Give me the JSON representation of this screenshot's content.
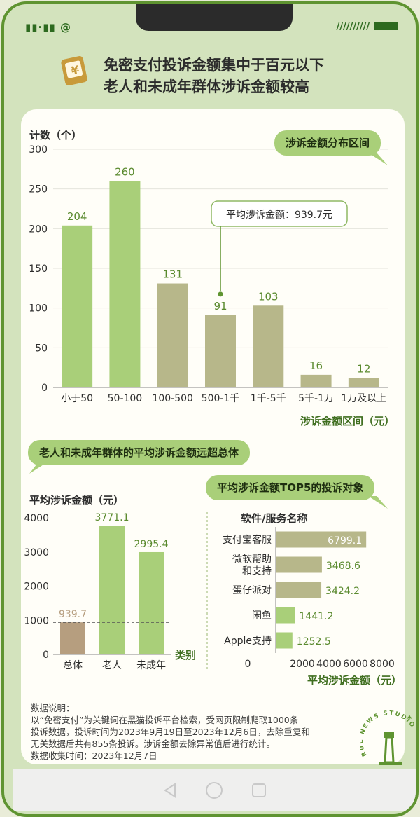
{
  "status": {
    "left": "▮▮·▮▮ @",
    "right": "//////////"
  },
  "title": {
    "line1": "免密支付投诉金额集中于百元以下",
    "line2": "老人和未成年群体涉诉金额较高"
  },
  "chart_data": [
    {
      "type": "bar",
      "title": "涉诉金额分布区间",
      "ylabel": "计数（个）",
      "xlabel": "涉诉金额区间（元）",
      "ylim": [
        0,
        300
      ],
      "yticks": [
        0,
        50,
        100,
        150,
        200,
        250,
        300
      ],
      "grid": true,
      "categories": [
        "小于50",
        "50-100",
        "100-500",
        "500-1千",
        "1千-5千",
        "5千-1万",
        "1万及以上"
      ],
      "values": [
        204,
        260,
        131,
        91,
        103,
        16,
        12
      ],
      "bar_colors": [
        "#a9cf79",
        "#a9cf79",
        "#b7b78a",
        "#b7b78a",
        "#b7b78a",
        "#b7b78a",
        "#b7b78a"
      ],
      "label_color": "#5a8a2e",
      "annotation": "平均涉诉金额：939.7元"
    },
    {
      "type": "bar",
      "title": "老人和未成年群体的平均涉诉金额远超总体",
      "ylabel": "平均涉诉金额（元）",
      "xlabel": "类别",
      "ylim": [
        0,
        4000
      ],
      "yticks": [
        0,
        1000,
        2000,
        3000,
        4000
      ],
      "categories": [
        "总体",
        "老人",
        "未成年"
      ],
      "values": [
        939.7,
        3771.1,
        2995.4
      ],
      "value_labels": [
        "939.7",
        "3771.1",
        "2995.4"
      ],
      "bar_colors": [
        "#b69e7f",
        "#a9cf79",
        "#a9cf79"
      ],
      "reference_line": 939.7
    },
    {
      "type": "bar",
      "orientation": "horizontal",
      "title": "平均涉诉金额TOP5的投诉对象",
      "ylabel": "软件/服务名称",
      "xlabel": "平均涉诉金额（元）",
      "xlim": [
        0,
        8000
      ],
      "xticks": [
        0,
        2000,
        4000,
        6000,
        8000
      ],
      "categories": [
        "支付宝客服",
        "微软帮助和支持",
        "蛋仔派对",
        "闲鱼",
        "Apple支持"
      ],
      "category_lines": [
        [
          "支付宝客服"
        ],
        [
          "微软帮助",
          "和支持"
        ],
        [
          "蛋仔派对"
        ],
        [
          "闲鱼"
        ],
        [
          "Apple支持"
        ]
      ],
      "values": [
        6799.1,
        3468.6,
        3424.2,
        1441.2,
        1252.5
      ],
      "value_labels": [
        "6799.1",
        "3468.6",
        "3424.2",
        "1441.2",
        "1252.5"
      ],
      "bar_colors": [
        "#b7b78a",
        "#b7b78a",
        "#b7b78a",
        "#a9cf79",
        "#a9cf79"
      ]
    }
  ],
  "note": {
    "lines": [
      "数据说明：",
      "以“免密支付”为关键词在黑猫投诉平台检索，受网页限制爬取1000条",
      "投诉数据，投诉时间为2023年9月19日至2023年12月6日，去除重复和",
      "无关数据后共有855条投诉。涉诉金额去除异常值后进行统计。",
      "数据收集时间：2023年12月7日"
    ]
  },
  "logo_text": "RUC NEWS STUDIO",
  "colors": {
    "accent": "#5f9431",
    "green_bar": "#a9cf79",
    "olive_bar": "#b7b78a",
    "tan_bar": "#b69e7f"
  }
}
